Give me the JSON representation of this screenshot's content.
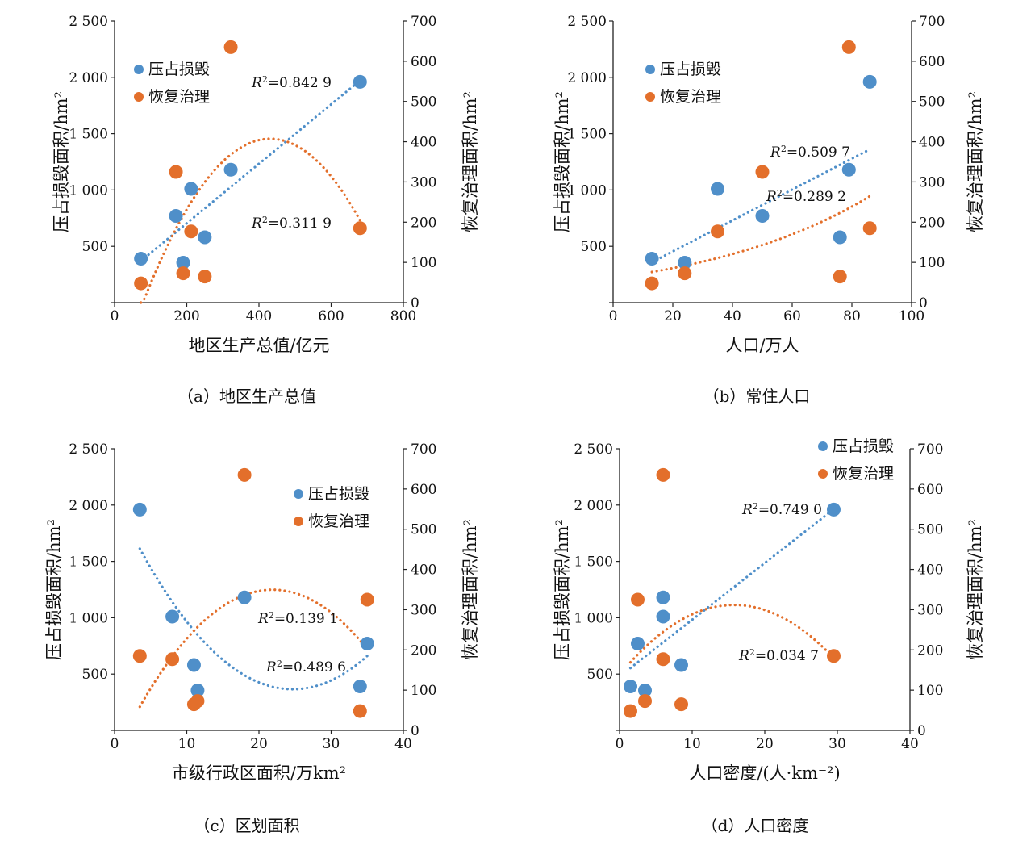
{
  "colors": {
    "blue": "#4f8fc9",
    "orange": "#e36f2b",
    "axis": "#222222"
  },
  "chart_data": [
    {
      "type": "scatter",
      "caption": "（a）地区生产总值",
      "xlabel": "地区生产总值/亿元",
      "ylabel": "压占损毁面积/hm²",
      "y2label": "恢复治理面积/hm²",
      "xlim": [
        0,
        800
      ],
      "xticks": [
        "0",
        "200",
        "400",
        "600",
        "800"
      ],
      "ylim": [
        0,
        2500
      ],
      "yticks": [
        "",
        "500",
        "1 000",
        "1 500",
        "2 000",
        "2 500"
      ],
      "y2lim": [
        0,
        700
      ],
      "y2ticks": [
        "0",
        "100",
        "200",
        "300",
        "400",
        "500",
        "600",
        "700"
      ],
      "legend_position": "top-left",
      "series": [
        {
          "name": "压占损毁",
          "axis": "left",
          "color": "#4f8fc9",
          "points": [
            [
              73,
              390
            ],
            [
              170,
              770
            ],
            [
              190,
              355
            ],
            [
              212,
              1010
            ],
            [
              250,
              580
            ],
            [
              322,
              1180
            ],
            [
              680,
              1960
            ]
          ],
          "trend": "linear",
          "r2": "R²=0.842 9"
        },
        {
          "name": "恢复治理",
          "axis": "right",
          "color": "#e36f2b",
          "points": [
            [
              73,
              48
            ],
            [
              170,
              325
            ],
            [
              190,
              73
            ],
            [
              212,
              177
            ],
            [
              250,
              65
            ],
            [
              322,
              635
            ],
            [
              680,
              185
            ]
          ],
          "trend": "poly2",
          "r2": "R²=0.311 9"
        }
      ]
    },
    {
      "type": "scatter",
      "caption": "（b）常住人口",
      "xlabel": "人口/万人",
      "ylabel": "压占损毁面积/hm²",
      "y2label": "恢复治理面积/hm²",
      "xlim": [
        0,
        100
      ],
      "xticks": [
        "0",
        "20",
        "40",
        "60",
        "80",
        "100"
      ],
      "ylim": [
        0,
        2500
      ],
      "yticks": [
        "",
        "500",
        "1 000",
        "1 500",
        "2 000",
        "2 500"
      ],
      "y2lim": [
        0,
        700
      ],
      "y2ticks": [
        "0",
        "100",
        "200",
        "300",
        "400",
        "500",
        "600",
        "700"
      ],
      "legend_position": "top-left",
      "series": [
        {
          "name": "压占损毁",
          "axis": "left",
          "color": "#4f8fc9",
          "points": [
            [
              13,
              390
            ],
            [
              24,
              355
            ],
            [
              35,
              1010
            ],
            [
              50,
              770
            ],
            [
              76,
              580
            ],
            [
              79,
              1180
            ],
            [
              86,
              1960
            ]
          ],
          "trend": "linear",
          "r2": "R²=0.509 7"
        },
        {
          "name": "恢复治理",
          "axis": "right",
          "color": "#e36f2b",
          "points": [
            [
              13,
              48
            ],
            [
              24,
              73
            ],
            [
              35,
              177
            ],
            [
              50,
              325
            ],
            [
              76,
              65
            ],
            [
              79,
              635
            ],
            [
              86,
              185
            ]
          ],
          "trend": "exp",
          "r2": "R²=0.289 2"
        }
      ]
    },
    {
      "type": "scatter",
      "caption": "（c）区划面积",
      "xlabel": "市级行政区面积/万km²",
      "ylabel": "压占损毁面积/hm²",
      "y2label": "恢复治理面积/hm²",
      "xlim": [
        0,
        40
      ],
      "xticks": [
        "0",
        "10",
        "20",
        "30",
        "40"
      ],
      "ylim": [
        0,
        2500
      ],
      "yticks": [
        "",
        "500",
        "1 000",
        "1 500",
        "2 000",
        "2 500"
      ],
      "y2lim": [
        0,
        700
      ],
      "y2ticks": [
        "0",
        "100",
        "200",
        "300",
        "400",
        "500",
        "600",
        "700"
      ],
      "legend_position": "top-right",
      "series": [
        {
          "name": "压占损毁",
          "axis": "left",
          "color": "#4f8fc9",
          "points": [
            [
              3.5,
              1960
            ],
            [
              8,
              1010
            ],
            [
              11,
              580
            ],
            [
              11.5,
              355
            ],
            [
              18,
              1180
            ],
            [
              34,
              390
            ],
            [
              35,
              770
            ]
          ],
          "trend": "poly2",
          "r2": "R²=0.489 6"
        },
        {
          "name": "恢复治理",
          "axis": "right",
          "color": "#e36f2b",
          "points": [
            [
              3.5,
              185
            ],
            [
              8,
              177
            ],
            [
              11,
              65
            ],
            [
              11.5,
              73
            ],
            [
              18,
              635
            ],
            [
              34,
              48
            ],
            [
              35,
              325
            ]
          ],
          "trend": "poly2",
          "r2": "R²=0.139 1"
        }
      ]
    },
    {
      "type": "scatter",
      "caption": "（d）人口密度",
      "xlabel": "人口密度/(人·km⁻²)",
      "ylabel": "压占损毁面积/hm²",
      "y2label": "恢复治理面积/hm²",
      "xlim": [
        0,
        40
      ],
      "xticks": [
        "0",
        "10",
        "20",
        "30",
        "40"
      ],
      "ylim": [
        0,
        2500
      ],
      "yticks": [
        "",
        "500",
        "1 000",
        "1 500",
        "2 000",
        "2 500"
      ],
      "y2lim": [
        0,
        700
      ],
      "y2ticks": [
        "0",
        "100",
        "200",
        "300",
        "400",
        "500",
        "600",
        "700"
      ],
      "legend_position": "top-right",
      "series": [
        {
          "name": "压占损毁",
          "axis": "left",
          "color": "#4f8fc9",
          "points": [
            [
              1.5,
              390
            ],
            [
              2.5,
              770
            ],
            [
              3.5,
              355
            ],
            [
              6,
              1180
            ],
            [
              6,
              1010
            ],
            [
              8.5,
              580
            ],
            [
              29.5,
              1960
            ]
          ],
          "trend": "linear",
          "r2": "R²=0.749 0"
        },
        {
          "name": "恢复治理",
          "axis": "right",
          "color": "#e36f2b",
          "points": [
            [
              1.5,
              48
            ],
            [
              2.5,
              325
            ],
            [
              3.5,
              73
            ],
            [
              6,
              635
            ],
            [
              6,
              177
            ],
            [
              8.5,
              65
            ],
            [
              29.5,
              185
            ]
          ],
          "trend": "poly2",
          "r2": "R²=0.034 7"
        }
      ]
    }
  ]
}
